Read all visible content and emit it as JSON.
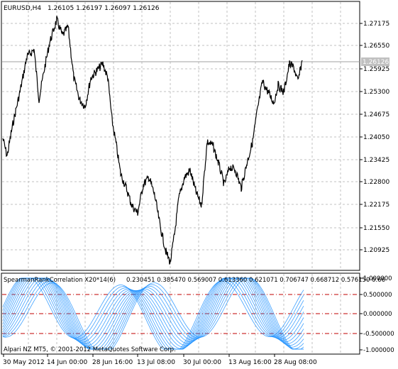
{
  "header": {
    "symbol": "EURUSD,H4",
    "ohlc": "1.26105 1.26197 1.26097 1.26126"
  },
  "price_chart": {
    "price_ticks": [
      "1.27175",
      "1.26550",
      "1.25925",
      "1.25300",
      "1.24675",
      "1.24050",
      "1.23425",
      "1.22800",
      "1.22175",
      "1.21550",
      "1.20925"
    ],
    "current_price": "1.26126"
  },
  "indicator": {
    "title": "SpearmanRankCorrelation X20*14(6)",
    "values": "0.230451 0.385470 0.569007 0.613360 0.621071 0.706747 0.668712 0.576150 0.66",
    "level_ticks": [
      "1.000000",
      "0.500000",
      "0.000000",
      "-0.500000",
      "-1.000000"
    ],
    "copyright": "Alpari NZ MT5, © 2001-2012 MetaQuotes Software Corp."
  },
  "time_axis": {
    "labels": [
      "30 May 2012",
      "14 Jun 00:00",
      "28 Jun 16:00",
      "13 Jul 08:00",
      "30 Jul 00:00",
      "13 Aug 16:00",
      "28 Aug 08:00"
    ]
  },
  "colors": {
    "grid": "#c0c0c0",
    "price_line": "#000000",
    "current_price_line": "#a0a0a0",
    "indicator_lines": "#1e90ff",
    "level_lines": "#c00000"
  }
}
